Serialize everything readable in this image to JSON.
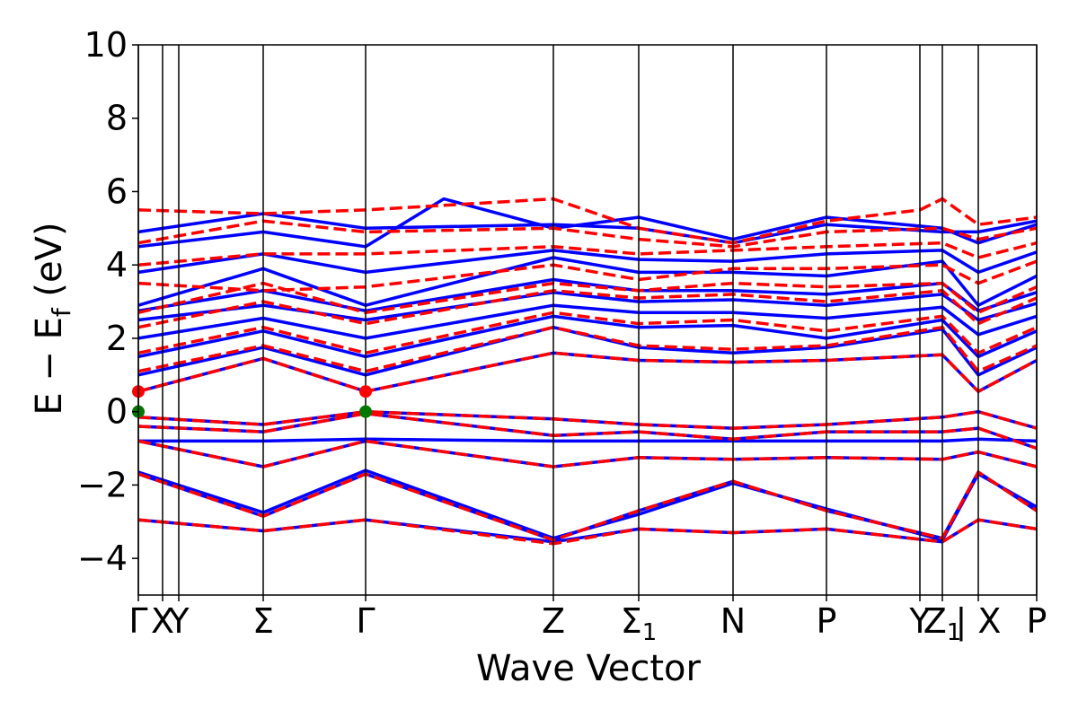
{
  "chart_data": {
    "type": "line",
    "xlabel": "Wave Vector",
    "ylabel_parts": {
      "main": "E − E",
      "sub": "f",
      "unit": " (eV)"
    },
    "ylim": [
      -5,
      10
    ],
    "yticks": [
      -4,
      -2,
      0,
      2,
      4,
      6,
      8,
      10
    ],
    "ytick_labels": [
      "−4",
      "−2",
      "0",
      "2",
      "4",
      "6",
      "8",
      "10"
    ],
    "kpoints": [
      {
        "label": "Γ",
        "x": 0.0
      },
      {
        "label": "X",
        "x": 0.27
      },
      {
        "label": "Y",
        "x": 0.45
      },
      {
        "label": "Σ",
        "x": 1.39
      },
      {
        "label": "Γ",
        "x": 2.53
      },
      {
        "label": "Z",
        "x": 4.62
      },
      {
        "label": "Σ",
        "sub": "1",
        "x": 5.57
      },
      {
        "label": "N",
        "x": 6.62
      },
      {
        "label": "P",
        "x": 7.66
      },
      {
        "label": "Y",
        "x": 8.7
      },
      {
        "label": "Z",
        "sub": "1",
        "x": 8.95
      },
      {
        "label": "| X",
        "x": 9.35
      },
      {
        "label": "P",
        "x": 10.0
      }
    ],
    "xlim": [
      0,
      10
    ],
    "series": [
      {
        "style": "solid",
        "color": "#0000ff",
        "bands": [
          {
            "x": [
              0,
              1.39,
              2.53,
              4.62,
              5.57,
              6.62,
              7.66,
              8.95,
              9.35,
              10
            ],
            "y": [
              -2.95,
              -3.25,
              -2.95,
              -3.55,
              -3.2,
              -3.3,
              -3.2,
              -3.55,
              -2.95,
              -3.2
            ]
          },
          {
            "x": [
              0,
              1.39,
              2.53,
              4.62,
              5.57,
              6.62,
              7.66,
              8.95,
              9.35,
              10
            ],
            "y": [
              -1.7,
              -2.85,
              -1.7,
              -3.5,
              -2.7,
              -1.9,
              -2.7,
              -3.45,
              -1.65,
              -2.7
            ]
          },
          {
            "x": [
              0,
              1.39,
              2.53,
              4.62,
              5.57,
              6.62,
              7.66,
              8.95,
              9.35,
              10
            ],
            "y": [
              -1.65,
              -2.75,
              -1.6,
              -3.45,
              -2.8,
              -1.95,
              -2.65,
              -3.5,
              -1.7,
              -2.6
            ]
          },
          {
            "x": [
              0,
              1.39,
              2.53,
              4.62,
              5.57,
              6.62,
              7.66,
              8.95,
              9.35,
              10
            ],
            "y": [
              -0.8,
              -1.5,
              -0.8,
              -1.5,
              -1.25,
              -1.3,
              -1.25,
              -1.3,
              -1.1,
              -1.5
            ]
          },
          {
            "x": [
              0,
              1.39,
              2.53,
              4.62,
              5.57,
              6.62,
              7.66,
              8.95,
              9.35,
              10
            ],
            "y": [
              -0.8,
              -0.8,
              -0.75,
              -0.8,
              -0.8,
              -0.8,
              -0.8,
              -0.8,
              -0.75,
              -0.8
            ]
          },
          {
            "x": [
              0,
              1.39,
              2.53,
              4.62,
              5.57,
              6.62,
              7.66,
              8.95,
              9.35,
              10
            ],
            "y": [
              -0.4,
              -0.55,
              -0.05,
              -0.65,
              -0.55,
              -0.75,
              -0.55,
              -0.55,
              -0.45,
              -1.0
            ]
          },
          {
            "x": [
              0,
              1.39,
              2.53,
              4.62,
              5.57,
              6.62,
              7.66,
              8.95,
              9.35,
              10
            ],
            "y": [
              -0.15,
              -0.35,
              0.0,
              -0.2,
              -0.35,
              -0.45,
              -0.35,
              -0.15,
              0.0,
              -0.45
            ]
          },
          {
            "x": [
              0,
              1.39,
              2.53,
              4.62,
              5.57,
              6.62,
              7.66,
              8.95,
              9.35,
              10
            ],
            "y": [
              0.55,
              1.45,
              0.55,
              1.6,
              1.4,
              1.35,
              1.4,
              1.55,
              0.55,
              1.4
            ]
          },
          {
            "x": [
              0,
              1.39,
              2.53,
              4.62,
              5.57,
              6.62,
              7.66,
              8.95,
              9.35,
              10
            ],
            "y": [
              1.0,
              1.75,
              1.0,
              2.3,
              1.75,
              1.6,
              1.75,
              2.25,
              1.0,
              1.75
            ]
          },
          {
            "x": [
              0,
              1.39,
              2.53,
              4.62,
              5.57,
              6.62,
              7.66,
              8.95,
              9.35,
              10
            ],
            "y": [
              1.5,
              2.2,
              1.5,
              2.6,
              2.3,
              2.35,
              2.0,
              2.5,
              1.5,
              2.2
            ]
          },
          {
            "x": [
              0,
              1.39,
              2.53,
              4.62,
              5.57,
              6.62,
              7.66,
              8.95,
              9.35,
              10
            ],
            "y": [
              2.0,
              2.55,
              2.0,
              2.9,
              2.7,
              2.7,
              2.55,
              2.85,
              2.1,
              2.6
            ]
          },
          {
            "x": [
              0,
              1.39,
              2.53,
              4.62,
              5.57,
              6.62,
              7.66,
              8.95,
              9.35,
              10
            ],
            "y": [
              2.5,
              2.9,
              2.5,
              3.25,
              3.0,
              3.05,
              2.9,
              3.2,
              2.5,
              2.95
            ]
          },
          {
            "x": [
              0,
              1.39,
              2.53,
              4.62,
              5.57,
              6.62,
              7.66,
              8.95,
              9.35,
              10
            ],
            "y": [
              2.75,
              3.3,
              2.75,
              3.6,
              3.3,
              3.3,
              3.2,
              3.5,
              2.75,
              3.25
            ]
          },
          {
            "x": [
              0,
              1.39,
              2.53,
              4.62,
              5.57,
              6.62,
              7.66,
              8.95,
              9.35,
              10
            ],
            "y": [
              2.9,
              3.9,
              2.9,
              4.2,
              3.8,
              3.8,
              3.7,
              4.1,
              2.9,
              3.7
            ]
          },
          {
            "x": [
              0,
              1.39,
              2.53,
              4.62,
              5.57,
              6.62,
              7.66,
              8.95,
              9.35,
              10
            ],
            "y": [
              3.8,
              4.3,
              3.8,
              4.4,
              4.15,
              4.1,
              4.3,
              4.4,
              3.8,
              4.35
            ]
          },
          {
            "x": [
              0,
              1.39,
              2.53,
              3.4,
              4.62,
              5.57,
              6.62,
              7.66,
              8.95,
              9.35,
              10
            ],
            "y": [
              4.5,
              4.9,
              4.5,
              5.8,
              5.0,
              5.3,
              4.7,
              5.3,
              5.0,
              4.6,
              5.1
            ]
          },
          {
            "x": [
              0,
              1.39,
              2.53,
              4.62,
              5.57,
              6.62,
              7.66,
              8.95,
              9.35,
              10
            ],
            "y": [
              4.9,
              5.4,
              5.0,
              5.1,
              5.0,
              4.6,
              5.1,
              4.9,
              4.9,
              5.2
            ]
          }
        ]
      },
      {
        "style": "dashed",
        "color": "#ff0000",
        "bands": [
          {
            "x": [
              0,
              1.39,
              2.53,
              4.62,
              5.57,
              6.62,
              7.66,
              8.95,
              9.35,
              10
            ],
            "y": [
              -2.95,
              -3.25,
              -2.95,
              -3.6,
              -3.2,
              -3.3,
              -3.2,
              -3.55,
              -2.95,
              -3.2
            ]
          },
          {
            "x": [
              0,
              1.39,
              2.53,
              4.62,
              5.57,
              6.62,
              7.66,
              8.95,
              9.35,
              10
            ],
            "y": [
              -1.7,
              -2.85,
              -1.7,
              -3.5,
              -2.7,
              -1.9,
              -2.7,
              -3.45,
              -1.65,
              -2.7
            ]
          },
          {
            "x": [
              0,
              1.39,
              2.53,
              4.62,
              5.57,
              6.62,
              7.66,
              8.95,
              9.35,
              10
            ],
            "y": [
              -0.8,
              -1.5,
              -0.8,
              -1.5,
              -1.25,
              -1.3,
              -1.25,
              -1.3,
              -1.1,
              -1.5
            ]
          },
          {
            "x": [
              0,
              1.39,
              2.53,
              4.62,
              5.57,
              6.62,
              7.66,
              8.95,
              9.35,
              10
            ],
            "y": [
              -0.4,
              -0.55,
              -0.05,
              -0.65,
              -0.55,
              -0.75,
              -0.55,
              -0.55,
              -0.45,
              -1.0
            ]
          },
          {
            "x": [
              0,
              1.39,
              2.53,
              4.62,
              5.57,
              6.62,
              7.66,
              8.95,
              9.35,
              10
            ],
            "y": [
              -0.15,
              -0.35,
              0.0,
              -0.2,
              -0.35,
              -0.45,
              -0.35,
              -0.15,
              0.0,
              -0.45
            ]
          },
          {
            "x": [
              0,
              1.39,
              2.53,
              4.62,
              5.57,
              6.62,
              7.66,
              8.95,
              9.35,
              10
            ],
            "y": [
              0.55,
              1.45,
              0.55,
              1.6,
              1.4,
              1.35,
              1.4,
              1.55,
              0.55,
              1.4
            ]
          },
          {
            "x": [
              0,
              1.39,
              2.53,
              4.62,
              5.57,
              6.62,
              7.66,
              8.95,
              9.35,
              10
            ],
            "y": [
              1.1,
              1.8,
              1.1,
              2.3,
              1.8,
              1.7,
              1.8,
              2.3,
              1.1,
              1.8
            ]
          },
          {
            "x": [
              0,
              1.39,
              2.53,
              4.62,
              5.57,
              6.62,
              7.66,
              8.95,
              9.35,
              10
            ],
            "y": [
              1.6,
              2.3,
              1.6,
              2.7,
              2.4,
              2.5,
              2.2,
              2.6,
              1.6,
              2.3
            ]
          },
          {
            "x": [
              0,
              1.39,
              2.53,
              4.62,
              5.57,
              6.62,
              7.66,
              8.95,
              9.35,
              10
            ],
            "y": [
              2.3,
              3.0,
              2.4,
              3.3,
              3.1,
              3.2,
              3.0,
              3.3,
              2.4,
              3.1
            ]
          },
          {
            "x": [
              0,
              1.39,
              2.53,
              4.62,
              5.57,
              6.62,
              7.66,
              8.95,
              9.35,
              10
            ],
            "y": [
              2.7,
              3.5,
              2.7,
              3.5,
              3.3,
              3.5,
              3.4,
              3.5,
              2.7,
              3.4
            ]
          },
          {
            "x": [
              0,
              1.39,
              2.53,
              4.62,
              5.57,
              6.62,
              7.66,
              8.95,
              9.35,
              10
            ],
            "y": [
              3.5,
              3.3,
              3.4,
              4.0,
              3.6,
              3.9,
              3.9,
              4.0,
              3.5,
              4.1
            ]
          },
          {
            "x": [
              0,
              1.39,
              2.53,
              4.62,
              5.57,
              6.62,
              7.66,
              8.95,
              9.35,
              10
            ],
            "y": [
              4.0,
              4.3,
              4.3,
              4.5,
              4.3,
              4.4,
              4.5,
              4.6,
              4.2,
              4.6
            ]
          },
          {
            "x": [
              0,
              1.39,
              2.53,
              4.62,
              5.57,
              6.62,
              7.66,
              8.95,
              9.35,
              10
            ],
            "y": [
              4.6,
              5.2,
              4.9,
              5.0,
              4.7,
              4.5,
              4.9,
              5.0,
              4.7,
              5.0
            ]
          },
          {
            "x": [
              0,
              1.39,
              2.53,
              4.62,
              5.57,
              6.62,
              7.66,
              8.7,
              8.95,
              9.35,
              10
            ],
            "y": [
              5.5,
              5.4,
              5.5,
              5.8,
              5.0,
              4.6,
              5.2,
              5.5,
              5.8,
              5.1,
              5.3
            ]
          }
        ]
      }
    ],
    "markers": [
      {
        "x": 0.0,
        "y": 0.55,
        "color": "#ff0000"
      },
      {
        "x": 0.0,
        "y": 0.0,
        "color": "#007700"
      },
      {
        "x": 2.53,
        "y": 0.55,
        "color": "#ff0000"
      },
      {
        "x": 2.53,
        "y": 0.0,
        "color": "#007700"
      }
    ]
  }
}
